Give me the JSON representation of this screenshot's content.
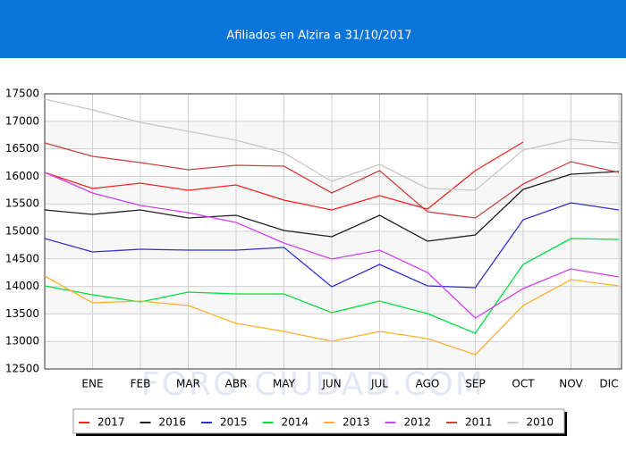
{
  "chart_data": {
    "type": "line",
    "title": "Afiliados en Alzira a 31/10/2017",
    "watermark": "FORO-CIUDAD.COM",
    "categories": [
      null,
      "ENE",
      "FEB",
      "MAR",
      "ABR",
      "MAY",
      "JUN",
      "JUL",
      "AGO",
      "SEP",
      "OCT",
      "NOV",
      "DIC"
    ],
    "ylim": [
      12500,
      17500
    ],
    "yticks": [
      12500,
      13000,
      13500,
      14000,
      14500,
      15000,
      15500,
      16000,
      16500,
      17000,
      17500
    ],
    "grid": true,
    "legend": "bottom",
    "series": [
      {
        "name": "2017",
        "color": "#ff2020",
        "values": [
          16071,
          15779,
          15877,
          15747,
          15844,
          15568,
          15390,
          15649,
          15406,
          16104,
          16623,
          null,
          null
        ]
      },
      {
        "name": "2016",
        "color": "#202020",
        "values": [
          15390,
          15308,
          15390,
          15244,
          15292,
          15016,
          14903,
          15292,
          14821,
          14935,
          15763,
          16039,
          16088
        ]
      },
      {
        "name": "2015",
        "color": "#3030d0",
        "values": [
          14870,
          14627,
          14675,
          14659,
          14659,
          14708,
          13994,
          14399,
          14010,
          13977,
          15211,
          15519,
          15390
        ]
      },
      {
        "name": "2014",
        "color": "#00e040",
        "values": [
          14010,
          13847,
          13718,
          13896,
          13864,
          13864,
          13523,
          13734,
          13506,
          13149,
          14399,
          14870,
          14854
        ]
      },
      {
        "name": "2013",
        "color": "#ffb030",
        "values": [
          14188,
          13701,
          13734,
          13653,
          13328,
          13182,
          13003,
          13182,
          13052,
          12760,
          13653,
          14123,
          14010
        ]
      },
      {
        "name": "2012",
        "color": "#d040f0",
        "values": [
          16071,
          15698,
          15471,
          15341,
          15162,
          14789,
          14497,
          14659,
          14253,
          13425,
          13961,
          14318,
          14172
        ]
      },
      {
        "name": "2011",
        "color": "#d04040",
        "values": [
          16607,
          16364,
          16250,
          16120,
          16201,
          16185,
          15698,
          16104,
          15357,
          15244,
          15860,
          16266,
          16071
        ]
      },
      {
        "name": "2010",
        "color": "#c8c8c8",
        "values": [
          17403,
          17208,
          16981,
          16818,
          16656,
          16429,
          15909,
          16218,
          15779,
          15747,
          16477,
          16672,
          16607
        ]
      }
    ]
  }
}
